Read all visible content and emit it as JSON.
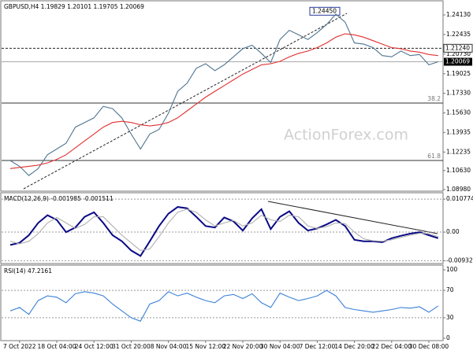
{
  "chart_data": [
    {
      "type": "line",
      "title": "GBPUSD,H4 1.19829 1.20101 1.19705 1.20069",
      "watermark": "ActionForex.com",
      "categories": [
        null,
        "7 Oct 2022",
        null,
        null,
        null,
        "18 Oct 04:00",
        null,
        null,
        null,
        "24 Oct 12:00",
        null,
        null,
        null,
        "31 Oct 20:00",
        null,
        null,
        null,
        "8 Nov 04:00",
        null,
        null,
        null,
        "15 Nov 12:00",
        null,
        null,
        null,
        "22 Nov 20:00",
        null,
        null,
        null,
        "30 Nov 04:00",
        null,
        null,
        null,
        "7 Dec 12:00",
        null,
        null,
        null,
        "14 Dec 20:00",
        null,
        null,
        null,
        "22 Dec 04:00",
        null,
        null,
        null,
        "30 Dec 08:00",
        null
      ],
      "series": [
        {
          "color": "#4f7591",
          "values": [
            1.115,
            1.11,
            1.102,
            1.108,
            1.12,
            1.125,
            1.13,
            1.144,
            1.148,
            1.152,
            1.162,
            1.16,
            1.152,
            1.138,
            1.125,
            1.138,
            1.142,
            1.156,
            1.175,
            1.182,
            1.195,
            1.199,
            1.193,
            1.198,
            1.205,
            1.212,
            1.215,
            1.208,
            1.2,
            1.22,
            1.228,
            1.224,
            1.22,
            1.226,
            1.233,
            1.242,
            1.235,
            1.217,
            1.216,
            1.213,
            1.206,
            1.205,
            1.21,
            1.206,
            1.207,
            1.198,
            1.2007
          ]
        },
        {
          "color": "#e03030",
          "values": [
            1.108,
            1.109,
            1.11,
            1.111,
            1.113,
            1.116,
            1.12,
            1.126,
            1.132,
            1.138,
            1.144,
            1.148,
            1.149,
            1.148,
            1.146,
            1.145,
            1.146,
            1.148,
            1.152,
            1.158,
            1.164,
            1.17,
            1.175,
            1.18,
            1.185,
            1.19,
            1.194,
            1.198,
            1.199,
            1.201,
            1.205,
            1.208,
            1.21,
            1.213,
            1.217,
            1.222,
            1.225,
            1.224,
            1.222,
            1.219,
            1.216,
            1.213,
            1.212,
            1.21,
            1.209,
            1.207,
            1.206
          ]
        }
      ],
      "ylim": [
        1.0891,
        1.2529
      ],
      "yticks": [
        {
          "value": 1.2413,
          "label": "1.24130"
        },
        {
          "value": 1.22435,
          "label": "1.22435"
        },
        {
          "value": 1.2073,
          "label": "1.20730"
        },
        {
          "value": 1.19025,
          "label": "1.19025"
        },
        {
          "value": 1.1733,
          "label": "1.17330"
        },
        {
          "value": 1.1563,
          "label": "1.15630"
        },
        {
          "value": 1.13935,
          "label": "1.13935"
        },
        {
          "value": 1.12235,
          "label": "1.12235"
        },
        {
          "value": 1.1063,
          "label": "1.10630"
        },
        {
          "value": 1.0898,
          "label": "1.08980"
        }
      ],
      "peak_label": {
        "value": 1.2445,
        "label": "1.24450"
      },
      "level_line": {
        "value": 1.2124,
        "label": "1.21240"
      },
      "last_price": {
        "value": 1.20069,
        "label": "1.20069"
      },
      "fib_levels": [
        {
          "value": 1.1649,
          "label": "38.2"
        },
        {
          "value": 1.115,
          "label": "61.8"
        }
      ]
    },
    {
      "type": "line",
      "title": "MACD(12,26,9) -0.001985 -0.001511",
      "series": [
        {
          "color": "#0a0a85",
          "values": [
            -0.0042,
            -0.0035,
            -0.001,
            0.003,
            0.0055,
            0.004,
            0,
            0.0015,
            0.005,
            0.0065,
            0.003,
            -0.001,
            -0.003,
            -0.006,
            -0.0078,
            -0.003,
            0.002,
            0.006,
            0.0082,
            0.0078,
            0.005,
            0.002,
            0.0015,
            0.0048,
            0.0035,
            0.0005,
            0.0045,
            0.0075,
            0.001,
            0.005,
            0.0068,
            0.003,
            0.0005,
            0.0012,
            0.0025,
            0.004,
            0.002,
            -0.0025,
            -0.003,
            -0.003,
            -0.0033,
            -0.002,
            -0.0012,
            -0.0005,
            0,
            -0.001,
            -0.002
          ]
        },
        {
          "color": "#b0b0b0",
          "values": [
            -0.003,
            -0.0038,
            -0.003,
            -0.0005,
            0.003,
            0.0048,
            0.003,
            0.0012,
            0.0025,
            0.005,
            0.005,
            0.002,
            -0.001,
            -0.0035,
            -0.006,
            -0.0055,
            -0.0015,
            0.003,
            0.0065,
            0.0075,
            0.0065,
            0.004,
            0.002,
            0.003,
            0.0038,
            0.002,
            0.003,
            0.0055,
            0.004,
            0.0035,
            0.0055,
            0.005,
            0.002,
            0.0012,
            0.0018,
            0.003,
            0.0028,
            0,
            -0.0022,
            -0.0028,
            -0.003,
            -0.0025,
            -0.0017,
            -0.001,
            -0.0004,
            -0.0005,
            -0.0015
          ]
        }
      ],
      "ylim": [
        -0.01,
        0.0126
      ],
      "yticks": [
        0.010774,
        {
          "value": 0,
          "label": "0.00"
        },
        -0.009328
      ]
    },
    {
      "type": "line",
      "title": "RSI(14) 47.2161",
      "series": [
        {
          "color": "#3a80d8",
          "values": [
            40,
            45,
            35,
            55,
            62,
            60,
            52,
            65,
            68,
            66,
            62,
            50,
            40,
            30,
            25,
            50,
            55,
            68,
            62,
            66,
            60,
            55,
            52,
            62,
            64,
            58,
            65,
            52,
            45,
            66,
            60,
            55,
            58,
            62,
            70,
            62,
            45,
            42,
            40,
            38,
            40,
            42,
            45,
            44,
            46,
            38,
            47.2161
          ]
        }
      ],
      "ylim": [
        0,
        100
      ],
      "yticks": [
        100,
        70,
        30,
        0
      ]
    }
  ]
}
